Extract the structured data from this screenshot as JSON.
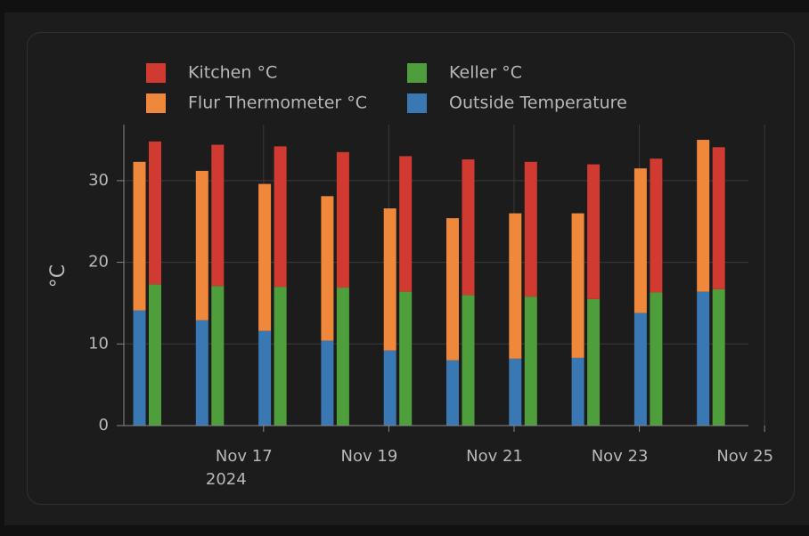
{
  "chart_data": {
    "type": "bar",
    "stacked": true,
    "title": "",
    "xlabel": "",
    "ylabel": "°C",
    "ylim": [
      0,
      36
    ],
    "yticks": [
      0,
      10,
      20,
      30
    ],
    "grid": true,
    "legend_position": "top",
    "x_tick_labels": [
      {
        "label": "Nov 17",
        "sublabel": "2024"
      },
      {
        "label": "Nov 19",
        "sublabel": ""
      },
      {
        "label": "Nov 21",
        "sublabel": ""
      },
      {
        "label": "Nov 23",
        "sublabel": ""
      },
      {
        "label": "Nov 25",
        "sublabel": ""
      }
    ],
    "dates": [
      "2024-11-16",
      "2024-11-17",
      "2024-11-18",
      "2024-11-19",
      "2024-11-20",
      "2024-11-21",
      "2024-11-22",
      "2024-11-23",
      "2024-11-24",
      "2024-11-25"
    ],
    "groups": [
      {
        "stack": "A",
        "series": [
          {
            "name": "Outside Temperature",
            "color": "#3a78b4",
            "values": [
              14.1,
              12.9,
              11.6,
              10.4,
              9.2,
              8.0,
              8.2,
              8.3,
              13.8,
              16.4
            ]
          },
          {
            "name": "Flur Thermometer °C",
            "color": "#f0883c",
            "values": [
              18.2,
              18.3,
              18.0,
              17.7,
              17.4,
              17.4,
              17.8,
              17.7,
              17.7,
              18.6
            ]
          }
        ]
      },
      {
        "stack": "B",
        "series": [
          {
            "name": "Keller °C",
            "color": "#4f9e3c",
            "values": [
              17.3,
              17.1,
              17.0,
              16.9,
              16.4,
              16.0,
              15.8,
              15.5,
              16.3,
              16.7
            ]
          },
          {
            "name": "Kitchen °C",
            "color": "#d03a31",
            "values": [
              17.5,
              17.3,
              17.2,
              16.6,
              16.6,
              16.6,
              16.5,
              16.5,
              16.4,
              17.4
            ]
          }
        ]
      }
    ],
    "legend": [
      {
        "label": "Kitchen °C",
        "color": "#d03a31"
      },
      {
        "label": "Keller °C",
        "color": "#4f9e3c"
      },
      {
        "label": "Flur Thermometer °C",
        "color": "#f0883c"
      },
      {
        "label": "Outside Temperature",
        "color": "#3a78b4"
      }
    ]
  }
}
